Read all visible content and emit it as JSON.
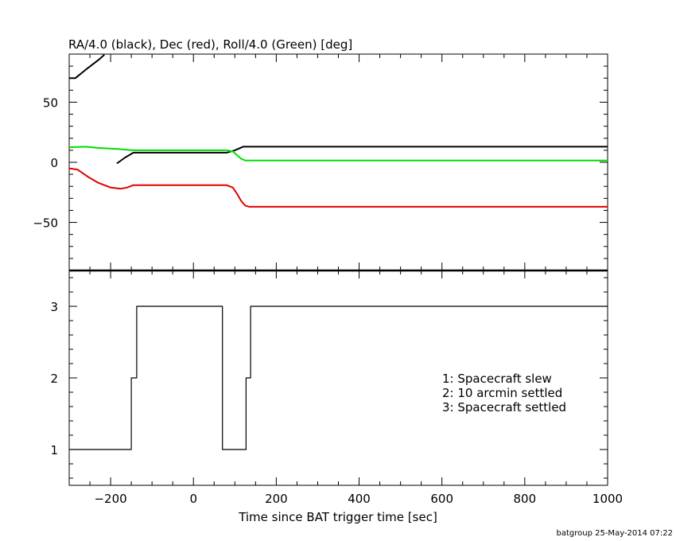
{
  "chart_data": [
    {
      "type": "line",
      "title": "RA/4.0 (black), Dec (red), Roll/4.0 (Green) [deg]",
      "xlabel": "",
      "ylabel": "",
      "xlim": [
        -300,
        1000
      ],
      "ylim": [
        -90,
        90
      ],
      "yticks": [
        50,
        0,
        -50
      ],
      "ytick_labels": [
        "50",
        "0",
        "−50"
      ],
      "grid": false,
      "series": [
        {
          "color": "#000000",
          "points": [
            [
              -300,
              70
            ],
            [
              -285,
              70
            ],
            [
              -260,
              77
            ],
            [
              -230,
              85
            ],
            [
              -215,
              89.5
            ]
          ]
        },
        {
          "color": "#000000",
          "points": [
            [
              -185,
              -1
            ],
            [
              -165,
              4
            ],
            [
              -145,
              8
            ],
            [
              -100,
              8
            ],
            [
              -20,
              8
            ],
            [
              80,
              8
            ],
            [
              100,
              10
            ],
            [
              120,
              13
            ],
            [
              140,
              13
            ],
            [
              400,
              13
            ],
            [
              1000,
              13
            ]
          ]
        },
        {
          "color": "#e00000",
          "points": [
            [
              -300,
              -5
            ],
            [
              -280,
              -6
            ],
            [
              -255,
              -12
            ],
            [
              -230,
              -17
            ],
            [
              -200,
              -21
            ],
            [
              -175,
              -22
            ],
            [
              -160,
              -21
            ],
            [
              -145,
              -19
            ],
            [
              -100,
              -19
            ],
            [
              0,
              -19
            ],
            [
              80,
              -19
            ],
            [
              95,
              -21
            ],
            [
              105,
              -26
            ],
            [
              115,
              -32
            ],
            [
              125,
              -36
            ],
            [
              135,
              -37
            ],
            [
              1000,
              -37
            ]
          ]
        },
        {
          "color": "#00dd00",
          "points": [
            [
              -300,
              12.5
            ],
            [
              -260,
              13
            ],
            [
              -230,
              12
            ],
            [
              -180,
              11
            ],
            [
              -145,
              10
            ],
            [
              -20,
              10
            ],
            [
              80,
              10
            ],
            [
              95,
              9
            ],
            [
              105,
              6
            ],
            [
              115,
              3
            ],
            [
              125,
              1.5
            ],
            [
              140,
              1.5
            ],
            [
              1000,
              1.5
            ]
          ]
        }
      ]
    },
    {
      "type": "line",
      "title": "",
      "xlabel": "Time since BAT trigger time [sec]",
      "ylabel": "",
      "xlim": [
        -300,
        1000
      ],
      "ylim": [
        0.5,
        3.5
      ],
      "yticks": [
        1,
        2,
        3
      ],
      "ytick_labels": [
        "1",
        "2",
        "3"
      ],
      "xticks": [
        -200,
        0,
        200,
        400,
        600,
        800,
        1000
      ],
      "xtick_labels": [
        "−200",
        "0",
        "200",
        "400",
        "600",
        "800",
        "1000"
      ],
      "grid": false,
      "series": [
        {
          "color": "#000000",
          "points": [
            [
              -300,
              1
            ],
            [
              -150,
              1
            ],
            [
              -150,
              2
            ],
            [
              -137,
              2
            ],
            [
              -137,
              3
            ],
            [
              70,
              3
            ],
            [
              70,
              1
            ],
            [
              127,
              1
            ],
            [
              127,
              2
            ],
            [
              138,
              2
            ],
            [
              138,
              3
            ],
            [
              1000,
              3
            ]
          ]
        }
      ],
      "annotations": [
        "1: Spacecraft slew",
        "2: 10 arcmin settled",
        "3: Spacecraft settled"
      ]
    }
  ],
  "footer": "batgroup 25-May-2014 07:22"
}
